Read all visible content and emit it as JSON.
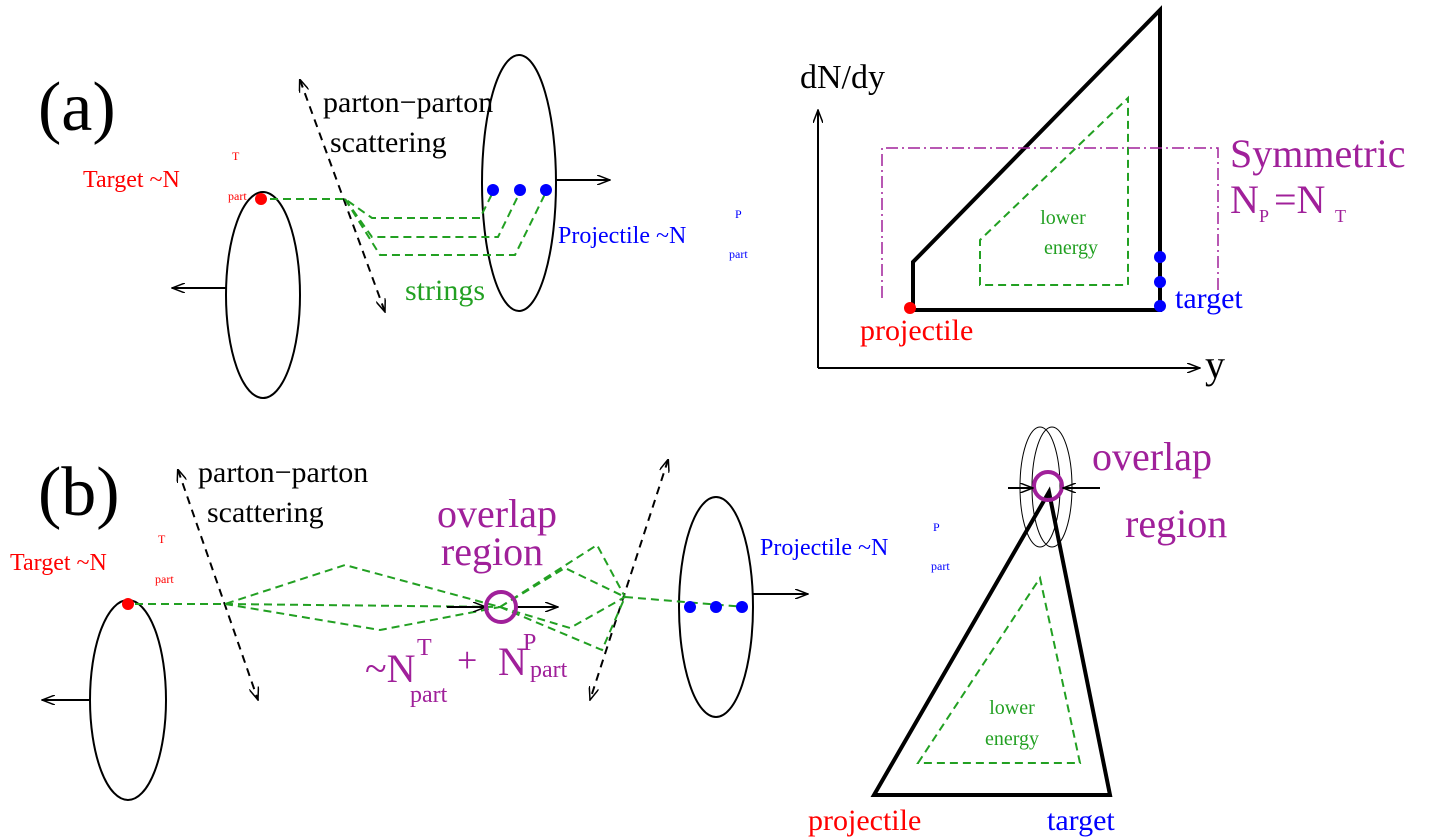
{
  "panel_a": {
    "label": "(a)",
    "scattering": [
      "parton−parton",
      "scattering"
    ],
    "target": {
      "text": "Target ~N",
      "sup": "T",
      "sub": "part"
    },
    "projectile": {
      "text": "Projectile ~N",
      "sup": "P",
      "sub": "part"
    },
    "strings": "strings",
    "plot": {
      "ylabel": "dN/dy",
      "xlabel": "y",
      "symmetric": "Symmetric",
      "equation": {
        "n1": "N",
        "sub1": "P",
        "eq": "=N",
        "sub2": "T"
      },
      "lower_energy": [
        "lower",
        "energy"
      ],
      "target": "target",
      "projectile": "projectile"
    }
  },
  "panel_b": {
    "label": "(b)",
    "scattering": [
      "parton−parton",
      "scattering"
    ],
    "overlap": [
      "overlap",
      "region"
    ],
    "target": {
      "text": "Target ~N",
      "sup": "T",
      "sub": "part"
    },
    "projectile": {
      "text": "Projectile ~N",
      "sup": "P",
      "sub": "part"
    },
    "sum": {
      "n1": "~N",
      "sup1": "T",
      "sub1": "part",
      "plus": "+",
      "n2": "N",
      "sup2": "P",
      "sub2": "part"
    },
    "plot": {
      "overlap": [
        "overlap",
        "region"
      ],
      "lower_energy": [
        "lower",
        "energy"
      ],
      "projectile": "projectile",
      "target": "target"
    }
  }
}
